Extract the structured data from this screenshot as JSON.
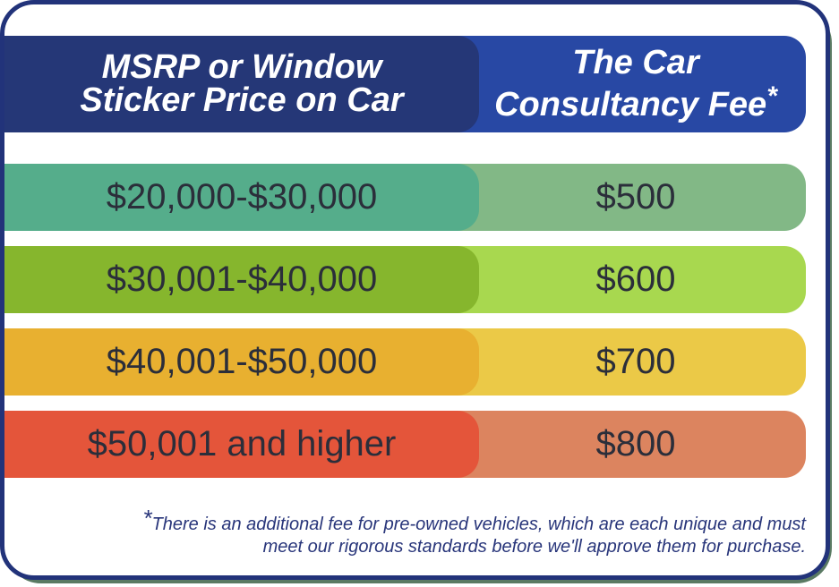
{
  "header": {
    "col1_line1": "MSRP or Window",
    "col1_line2": "Sticker Price on Car",
    "col2_line1": "The Car",
    "col2_line2": "Consultancy Fee",
    "col2_asterisk": "*"
  },
  "rows": [
    {
      "price_range": "$20,000-$30,000",
      "fee": "$500",
      "left_color": "#55ad8b",
      "right_color": "#82b886"
    },
    {
      "price_range": "$30,001-$40,000",
      "fee": "$600",
      "left_color": "#86b62d",
      "right_color": "#a8d84f"
    },
    {
      "price_range": "$40,001-$50,000",
      "fee": "$700",
      "left_color": "#e8b030",
      "right_color": "#ebc947"
    },
    {
      "price_range": "$50,001 and higher",
      "fee": "$800",
      "left_color": "#e4553a",
      "right_color": "#dc845f"
    }
  ],
  "footnote": {
    "asterisk": "*",
    "line1": "There is an additional fee for pre-owned vehicles, which are each unique and must",
    "line2": "meet our rigorous standards before we'll approve them for purchase."
  }
}
